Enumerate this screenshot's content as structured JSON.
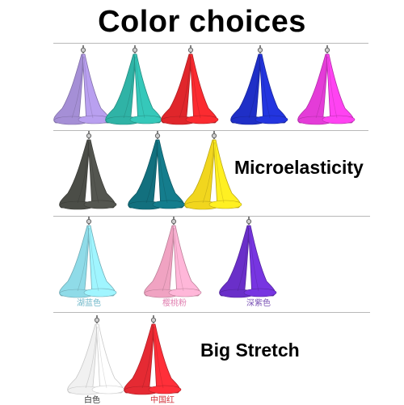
{
  "title": "Color choices",
  "sections": {
    "microelasticity": "Microelasticity",
    "big_stretch": "Big Stretch"
  },
  "rows": [
    {
      "silks": [
        {
          "name": "purple",
          "color": "#a58fd6"
        },
        {
          "name": "teal",
          "color": "#2fb3a6"
        },
        {
          "name": "red",
          "color": "#e0262b"
        },
        {
          "name": "blue",
          "color": "#1f2fc7"
        },
        {
          "name": "magenta",
          "color": "#e43cd8"
        }
      ]
    },
    {
      "silks": [
        {
          "name": "dark-gray",
          "color": "#4b4d47"
        },
        {
          "name": "dark-teal",
          "color": "#12707e"
        },
        {
          "name": "yellow",
          "color": "#f1d61e"
        }
      ]
    },
    {
      "silks": [
        {
          "name": "light-blue",
          "color": "#8fdbe8",
          "label": "湖蓝色",
          "label_color": "#6fb7c9"
        },
        {
          "name": "pink",
          "color": "#f0a3c2",
          "label": "樱桃粉",
          "label_color": "#e07fb0"
        },
        {
          "name": "deep-purple",
          "color": "#6a2fc9",
          "label": "深紫色",
          "label_color": "#7a52b5"
        }
      ]
    },
    {
      "silks": [
        {
          "name": "white",
          "color": "#f1f1f1",
          "label": "白色",
          "label_color": "#333333"
        },
        {
          "name": "china-red",
          "color": "#e52a33",
          "label": "中国红",
          "label_color": "#d0323a"
        }
      ]
    }
  ]
}
